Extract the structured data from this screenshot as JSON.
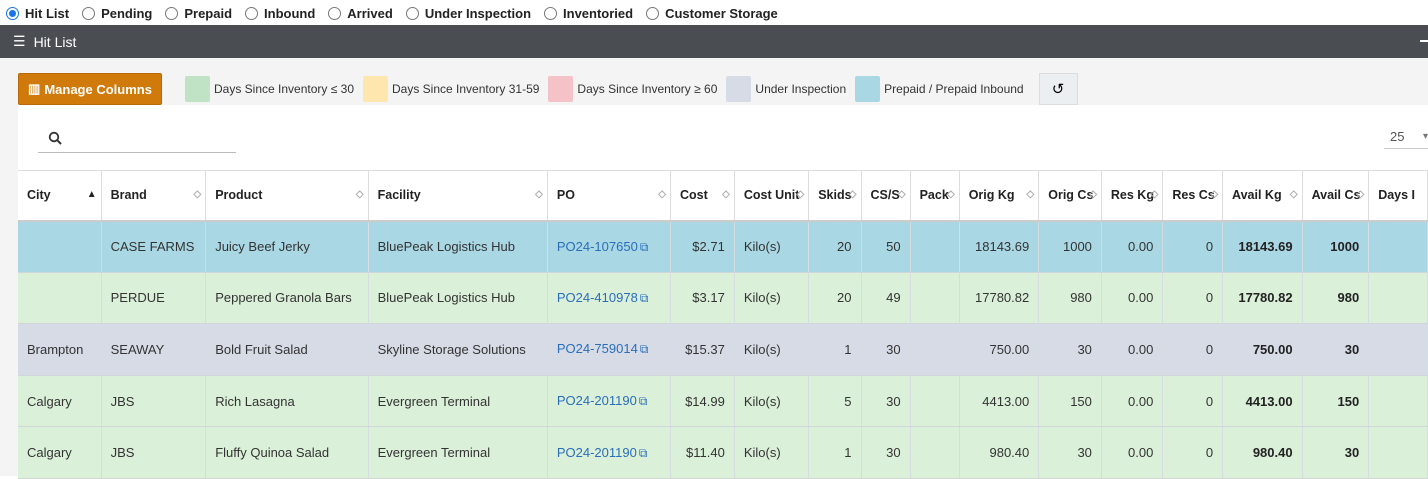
{
  "tabs": [
    {
      "label": "Hit List",
      "checked": true
    },
    {
      "label": "Pending",
      "checked": false
    },
    {
      "label": "Prepaid",
      "checked": false
    },
    {
      "label": "Inbound",
      "checked": false
    },
    {
      "label": "Arrived",
      "checked": false
    },
    {
      "label": "Under Inspection",
      "checked": false
    },
    {
      "label": "Inventoried",
      "checked": false
    },
    {
      "label": "Customer Storage",
      "checked": false
    }
  ],
  "panel": {
    "title": "Hit List",
    "icon": "list-icon"
  },
  "toolbar": {
    "manage_columns_label": "Manage Columns",
    "reset_icon": "refresh-icon"
  },
  "legend": [
    {
      "label": "Days Since Inventory ≤ 30",
      "color": "#bfe3c4"
    },
    {
      "label": "Days Since Inventory 31-59",
      "color": "#fde7ae"
    },
    {
      "label": "Days Since Inventory ≥ 60",
      "color": "#f5c2c7"
    },
    {
      "label": "Under Inspection",
      "color": "#d6dbe6"
    },
    {
      "label": "Prepaid / Prepaid Inbound",
      "color": "#a9d7e4"
    }
  ],
  "search": {
    "placeholder": "",
    "value": ""
  },
  "page_size": {
    "value": "25"
  },
  "columns": [
    "City",
    "Brand",
    "Product",
    "Facility",
    "PO",
    "Cost",
    "Cost Unit",
    "Skids",
    "CS/S",
    "Pack",
    "Orig Kg",
    "Orig Cs",
    "Res Kg",
    "Res Cs",
    "Avail Kg",
    "Avail Cs",
    "Days I"
  ],
  "rows": [
    {
      "status": "prepaid",
      "city": "",
      "brand": "CASE FARMS",
      "product": "Juicy Beef Jerky",
      "facility": "BluePeak Logistics Hub",
      "po": "PO24-107650",
      "cost": "$2.71",
      "cost_unit": "Kilo(s)",
      "skids": "20",
      "cs_s": "50",
      "pack": "",
      "orig_kg": "18143.69",
      "orig_cs": "1000",
      "res_kg": "0.00",
      "res_cs": "0",
      "avail_kg": "18143.69",
      "avail_cs": "1000",
      "days": ""
    },
    {
      "status": "green",
      "city": "",
      "brand": "PERDUE",
      "product": "Peppered Granola Bars",
      "facility": "BluePeak Logistics Hub",
      "po": "PO24-410978",
      "cost": "$3.17",
      "cost_unit": "Kilo(s)",
      "skids": "20",
      "cs_s": "49",
      "pack": "",
      "orig_kg": "17780.82",
      "orig_cs": "980",
      "res_kg": "0.00",
      "res_cs": "0",
      "avail_kg": "17780.82",
      "avail_cs": "980",
      "days": ""
    },
    {
      "status": "inspect",
      "city": "Brampton",
      "brand": "SEAWAY",
      "product": "Bold Fruit Salad",
      "facility": "Skyline Storage Solutions",
      "po": "PO24-759014",
      "cost": "$15.37",
      "cost_unit": "Kilo(s)",
      "skids": "1",
      "cs_s": "30",
      "pack": "",
      "orig_kg": "750.00",
      "orig_cs": "30",
      "res_kg": "0.00",
      "res_cs": "0",
      "avail_kg": "750.00",
      "avail_cs": "30",
      "days": ""
    },
    {
      "status": "green",
      "city": "Calgary",
      "brand": "JBS",
      "product": "Rich Lasagna",
      "facility": "Evergreen Terminal",
      "po": "PO24-201190",
      "cost": "$14.99",
      "cost_unit": "Kilo(s)",
      "skids": "5",
      "cs_s": "30",
      "pack": "",
      "orig_kg": "4413.00",
      "orig_cs": "150",
      "res_kg": "0.00",
      "res_cs": "0",
      "avail_kg": "4413.00",
      "avail_cs": "150",
      "days": ""
    },
    {
      "status": "green",
      "city": "Calgary",
      "brand": "JBS",
      "product": "Fluffy Quinoa Salad",
      "facility": "Evergreen Terminal",
      "po": "PO24-201190",
      "cost": "$11.40",
      "cost_unit": "Kilo(s)",
      "skids": "1",
      "cs_s": "30",
      "pack": "",
      "orig_kg": "980.40",
      "orig_cs": "30",
      "res_kg": "0.00",
      "res_cs": "0",
      "avail_kg": "980.40",
      "avail_cs": "30",
      "days": ""
    }
  ]
}
